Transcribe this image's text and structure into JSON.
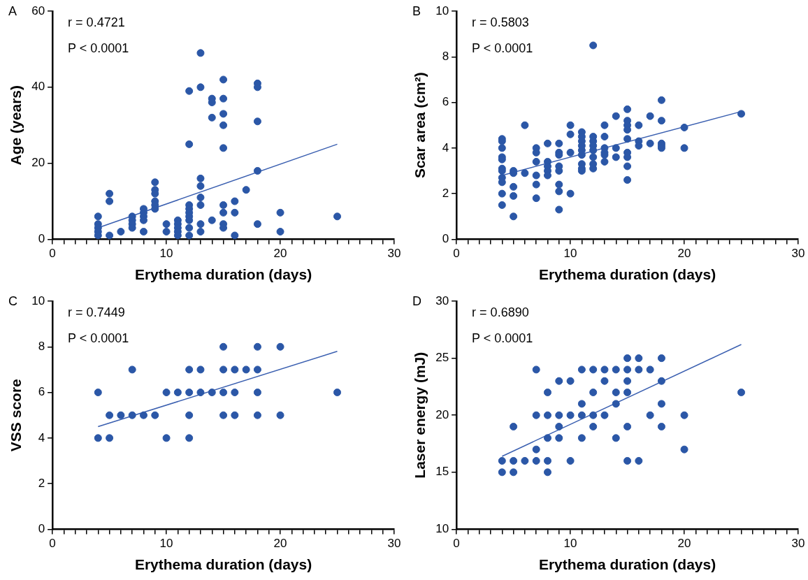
{
  "chart_data": [
    {
      "type": "scatter",
      "xlabel": "Erythema duration (days)",
      "ylabel": "Age (years)",
      "annotations": [
        "A",
        "r = 0.4721",
        "P < 0.0001"
      ],
      "xlim": [
        0,
        30
      ],
      "ylim": [
        0,
        60
      ],
      "xticks": [
        0,
        {
          "value": 1,
          "label": null
        },
        {
          "value": 2,
          "label": null
        },
        {
          "value": 3,
          "label": null
        },
        {
          "value": 4,
          "label": null
        },
        {
          "value": 5,
          "label": null
        },
        {
          "value": 6,
          "label": null
        },
        {
          "value": 7,
          "label": null
        },
        {
          "value": 8,
          "label": null
        },
        {
          "value": 9,
          "label": null
        },
        10,
        {
          "value": 11,
          "label": null
        },
        {
          "value": 12,
          "label": null
        },
        {
          "value": 13,
          "label": null
        },
        {
          "value": 14,
          "label": null
        },
        {
          "value": 15,
          "label": null
        },
        {
          "value": 16,
          "label": null
        },
        {
          "value": 17,
          "label": null
        },
        {
          "value": 18,
          "label": null
        },
        {
          "value": 19,
          "label": null
        },
        20,
        {
          "value": 21,
          "label": null
        },
        {
          "value": 22,
          "label": null
        },
        {
          "value": 23,
          "label": null
        },
        {
          "value": 24,
          "label": null
        },
        {
          "value": 25,
          "label": null
        },
        {
          "value": 26,
          "label": null
        },
        {
          "value": 27,
          "label": null
        },
        {
          "value": 28,
          "label": null
        },
        {
          "value": 29,
          "label": null
        },
        30
      ],
      "yticks": [
        0,
        20,
        40,
        60
      ],
      "grid": false,
      "legend": false,
      "series": [
        {
          "type": "scatter",
          "marker": "circle",
          "color": "#2b57a7",
          "x": [
            4,
            4,
            4,
            4,
            4,
            5,
            5,
            5,
            6,
            7,
            7,
            7,
            7,
            8,
            8,
            8,
            8,
            8,
            9,
            9,
            9,
            9,
            9,
            9,
            10,
            10,
            11,
            11,
            11,
            11,
            11,
            12,
            12,
            12,
            12,
            12,
            12,
            12,
            12,
            12,
            13,
            13,
            13,
            13,
            13,
            13,
            13,
            13,
            14,
            14,
            14,
            14,
            15,
            15,
            15,
            15,
            15,
            15,
            15,
            15,
            15,
            16,
            16,
            16,
            17,
            18,
            18,
            18,
            18,
            18,
            20,
            20,
            25
          ],
          "values": [
            6,
            4,
            3,
            2,
            1,
            12,
            10,
            1,
            2,
            6,
            5,
            4,
            3,
            8,
            7,
            6,
            5,
            2,
            15,
            13,
            12,
            10,
            9,
            8,
            4,
            2,
            5,
            4,
            3,
            2,
            1,
            39,
            25,
            9,
            8,
            7,
            6,
            5,
            3,
            1,
            49,
            40,
            16,
            14,
            11,
            9,
            4,
            2,
            37,
            36,
            32,
            5,
            42,
            37,
            33,
            30,
            24,
            9,
            7,
            4,
            3,
            10,
            7,
            1,
            13,
            41,
            40,
            31,
            18,
            4,
            7,
            2,
            6
          ]
        },
        {
          "type": "line",
          "marker": "none",
          "color": "#3a5fb0",
          "x": [
            4,
            25
          ],
          "values": [
            3,
            25
          ]
        }
      ]
    },
    {
      "type": "scatter",
      "xlabel": "Erythema duration (days)",
      "ylabel": "Scar area (cm²)",
      "annotations": [
        "B",
        "r = 0.5803",
        "P < 0.0001"
      ],
      "xlim": [
        0,
        30
      ],
      "ylim": [
        0,
        10
      ],
      "xticks": [
        0,
        {
          "value": 1,
          "label": null
        },
        {
          "value": 2,
          "label": null
        },
        {
          "value": 3,
          "label": null
        },
        {
          "value": 4,
          "label": null
        },
        {
          "value": 5,
          "label": null
        },
        {
          "value": 6,
          "label": null
        },
        {
          "value": 7,
          "label": null
        },
        {
          "value": 8,
          "label": null
        },
        {
          "value": 9,
          "label": null
        },
        10,
        {
          "value": 11,
          "label": null
        },
        {
          "value": 12,
          "label": null
        },
        {
          "value": 13,
          "label": null
        },
        {
          "value": 14,
          "label": null
        },
        {
          "value": 15,
          "label": null
        },
        {
          "value": 16,
          "label": null
        },
        {
          "value": 17,
          "label": null
        },
        {
          "value": 18,
          "label": null
        },
        {
          "value": 19,
          "label": null
        },
        20,
        {
          "value": 21,
          "label": null
        },
        {
          "value": 22,
          "label": null
        },
        {
          "value": 23,
          "label": null
        },
        {
          "value": 24,
          "label": null
        },
        {
          "value": 25,
          "label": null
        },
        {
          "value": 26,
          "label": null
        },
        {
          "value": 27,
          "label": null
        },
        {
          "value": 28,
          "label": null
        },
        {
          "value": 29,
          "label": null
        },
        30
      ],
      "yticks": [
        0,
        2,
        4,
        6,
        8,
        10
      ],
      "grid": false,
      "legend": false,
      "series": [
        {
          "type": "scatter",
          "marker": "circle",
          "color": "#2b57a7",
          "x": [
            4,
            4,
            4,
            4,
            4,
            4,
            4,
            4,
            4,
            4,
            4,
            5,
            5,
            5,
            5,
            5,
            6,
            6,
            7,
            7,
            7,
            7,
            7,
            7,
            8,
            8,
            8,
            8,
            8,
            9,
            9,
            9,
            9,
            9,
            9,
            9,
            9,
            10,
            10,
            10,
            10,
            11,
            11,
            11,
            11,
            11,
            11,
            11,
            11,
            11,
            12,
            12,
            12,
            12,
            12,
            12,
            12,
            12,
            13,
            13,
            13,
            13,
            13,
            13,
            14,
            14,
            14,
            15,
            15,
            15,
            15,
            15,
            15,
            15,
            15,
            15,
            16,
            16,
            16,
            17,
            17,
            18,
            18,
            18,
            18,
            18,
            20,
            20,
            25
          ],
          "values": [
            4.4,
            4.3,
            4.0,
            3.6,
            3.5,
            3.1,
            3.0,
            2.7,
            2.5,
            2.0,
            1.5,
            3.0,
            2.9,
            2.3,
            1.9,
            1.0,
            5.0,
            2.9,
            4.0,
            3.8,
            3.4,
            2.8,
            2.4,
            1.8,
            4.2,
            3.4,
            3.2,
            3.0,
            2.8,
            4.2,
            3.8,
            3.7,
            3.2,
            3.0,
            2.4,
            2.1,
            1.3,
            5.0,
            4.6,
            3.8,
            2.0,
            4.7,
            4.5,
            4.3,
            4.1,
            3.9,
            3.7,
            3.3,
            3.1,
            3.0,
            8.5,
            4.5,
            4.3,
            4.1,
            3.9,
            3.6,
            3.3,
            3.1,
            5.0,
            4.5,
            4.0,
            3.8,
            3.7,
            3.4,
            5.4,
            4.0,
            3.6,
            5.7,
            5.2,
            5.0,
            4.8,
            4.4,
            3.8,
            3.6,
            3.2,
            2.6,
            5.0,
            4.3,
            4.1,
            5.4,
            4.2,
            6.1,
            5.2,
            4.2,
            4.1,
            4.0,
            4.9,
            4.0,
            5.5
          ]
        },
        {
          "type": "line",
          "marker": "none",
          "color": "#3a5fb0",
          "x": [
            4,
            25
          ],
          "values": [
            2.8,
            5.6
          ]
        }
      ]
    },
    {
      "type": "scatter",
      "xlabel": "Erythema duration (days)",
      "ylabel": "VSS score",
      "annotations": [
        "C",
        "r = 0.7449",
        "P < 0.0001"
      ],
      "xlim": [
        0,
        30
      ],
      "ylim": [
        0,
        10
      ],
      "xticks": [
        0,
        {
          "value": 1,
          "label": null
        },
        {
          "value": 2,
          "label": null
        },
        {
          "value": 3,
          "label": null
        },
        {
          "value": 4,
          "label": null
        },
        {
          "value": 5,
          "label": null
        },
        {
          "value": 6,
          "label": null
        },
        {
          "value": 7,
          "label": null
        },
        {
          "value": 8,
          "label": null
        },
        {
          "value": 9,
          "label": null
        },
        10,
        {
          "value": 11,
          "label": null
        },
        {
          "value": 12,
          "label": null
        },
        {
          "value": 13,
          "label": null
        },
        {
          "value": 14,
          "label": null
        },
        {
          "value": 15,
          "label": null
        },
        {
          "value": 16,
          "label": null
        },
        {
          "value": 17,
          "label": null
        },
        {
          "value": 18,
          "label": null
        },
        {
          "value": 19,
          "label": null
        },
        20,
        {
          "value": 21,
          "label": null
        },
        {
          "value": 22,
          "label": null
        },
        {
          "value": 23,
          "label": null
        },
        {
          "value": 24,
          "label": null
        },
        {
          "value": 25,
          "label": null
        },
        {
          "value": 26,
          "label": null
        },
        {
          "value": 27,
          "label": null
        },
        {
          "value": 28,
          "label": null
        },
        {
          "value": 29,
          "label": null
        },
        30
      ],
      "yticks": [
        0,
        2,
        4,
        6,
        8,
        10
      ],
      "grid": false,
      "legend": false,
      "series": [
        {
          "type": "scatter",
          "marker": "circle",
          "color": "#2b57a7",
          "x": [
            4,
            4,
            5,
            5,
            6,
            7,
            7,
            8,
            9,
            10,
            10,
            11,
            12,
            12,
            12,
            12,
            13,
            13,
            14,
            15,
            15,
            15,
            15,
            16,
            16,
            16,
            17,
            18,
            18,
            18,
            18,
            20,
            20,
            25
          ],
          "values": [
            6,
            4,
            5,
            4,
            5,
            7,
            5,
            5,
            5,
            6,
            4,
            6,
            7,
            6,
            5,
            4,
            7,
            6,
            6,
            8,
            7,
            6,
            5,
            7,
            6,
            5,
            7,
            8,
            7,
            6,
            5,
            8,
            5,
            6
          ]
        },
        {
          "type": "line",
          "marker": "none",
          "color": "#3a5fb0",
          "x": [
            4,
            25
          ],
          "values": [
            4.5,
            7.8
          ]
        }
      ]
    },
    {
      "type": "scatter",
      "xlabel": "Erythema duration (days)",
      "ylabel": "Laser energy (mJ)",
      "annotations": [
        "D",
        "r = 0.6890",
        "P < 0.0001"
      ],
      "xlim": [
        0,
        30
      ],
      "ylim": [
        10,
        30
      ],
      "xticks": [
        0,
        {
          "value": 1,
          "label": null
        },
        {
          "value": 2,
          "label": null
        },
        {
          "value": 3,
          "label": null
        },
        {
          "value": 4,
          "label": null
        },
        {
          "value": 5,
          "label": null
        },
        {
          "value": 6,
          "label": null
        },
        {
          "value": 7,
          "label": null
        },
        {
          "value": 8,
          "label": null
        },
        {
          "value": 9,
          "label": null
        },
        10,
        {
          "value": 11,
          "label": null
        },
        {
          "value": 12,
          "label": null
        },
        {
          "value": 13,
          "label": null
        },
        {
          "value": 14,
          "label": null
        },
        {
          "value": 15,
          "label": null
        },
        {
          "value": 16,
          "label": null
        },
        {
          "value": 17,
          "label": null
        },
        {
          "value": 18,
          "label": null
        },
        {
          "value": 19,
          "label": null
        },
        20,
        {
          "value": 21,
          "label": null
        },
        {
          "value": 22,
          "label": null
        },
        {
          "value": 23,
          "label": null
        },
        {
          "value": 24,
          "label": null
        },
        {
          "value": 25,
          "label": null
        },
        {
          "value": 26,
          "label": null
        },
        {
          "value": 27,
          "label": null
        },
        {
          "value": 28,
          "label": null
        },
        {
          "value": 29,
          "label": null
        },
        30
      ],
      "yticks": [
        10,
        15,
        20,
        25,
        30
      ],
      "grid": false,
      "legend": false,
      "series": [
        {
          "type": "scatter",
          "marker": "circle",
          "color": "#2b57a7",
          "x": [
            4,
            4,
            5,
            5,
            5,
            6,
            7,
            7,
            7,
            7,
            8,
            8,
            8,
            8,
            8,
            9,
            9,
            9,
            9,
            10,
            10,
            10,
            11,
            11,
            11,
            11,
            12,
            12,
            12,
            12,
            13,
            13,
            13,
            14,
            14,
            14,
            14,
            15,
            15,
            15,
            15,
            15,
            15,
            16,
            16,
            16,
            17,
            17,
            18,
            18,
            18,
            18,
            20,
            20,
            25
          ],
          "values": [
            16,
            15,
            19,
            16,
            15,
            16,
            24,
            20,
            17,
            16,
            22,
            20,
            18,
            16,
            15,
            23,
            20,
            19,
            18,
            23,
            20,
            16,
            24,
            21,
            20,
            18,
            24,
            22,
            20,
            19,
            24,
            23,
            20,
            24,
            22,
            21,
            18,
            25,
            24,
            23,
            22,
            19,
            16,
            25,
            24,
            16,
            24,
            20,
            25,
            23,
            21,
            19,
            20,
            17,
            22
          ]
        },
        {
          "type": "line",
          "marker": "none",
          "color": "#3a5fb0",
          "x": [
            4,
            25
          ],
          "values": [
            16.4,
            26.2
          ]
        }
      ]
    }
  ]
}
